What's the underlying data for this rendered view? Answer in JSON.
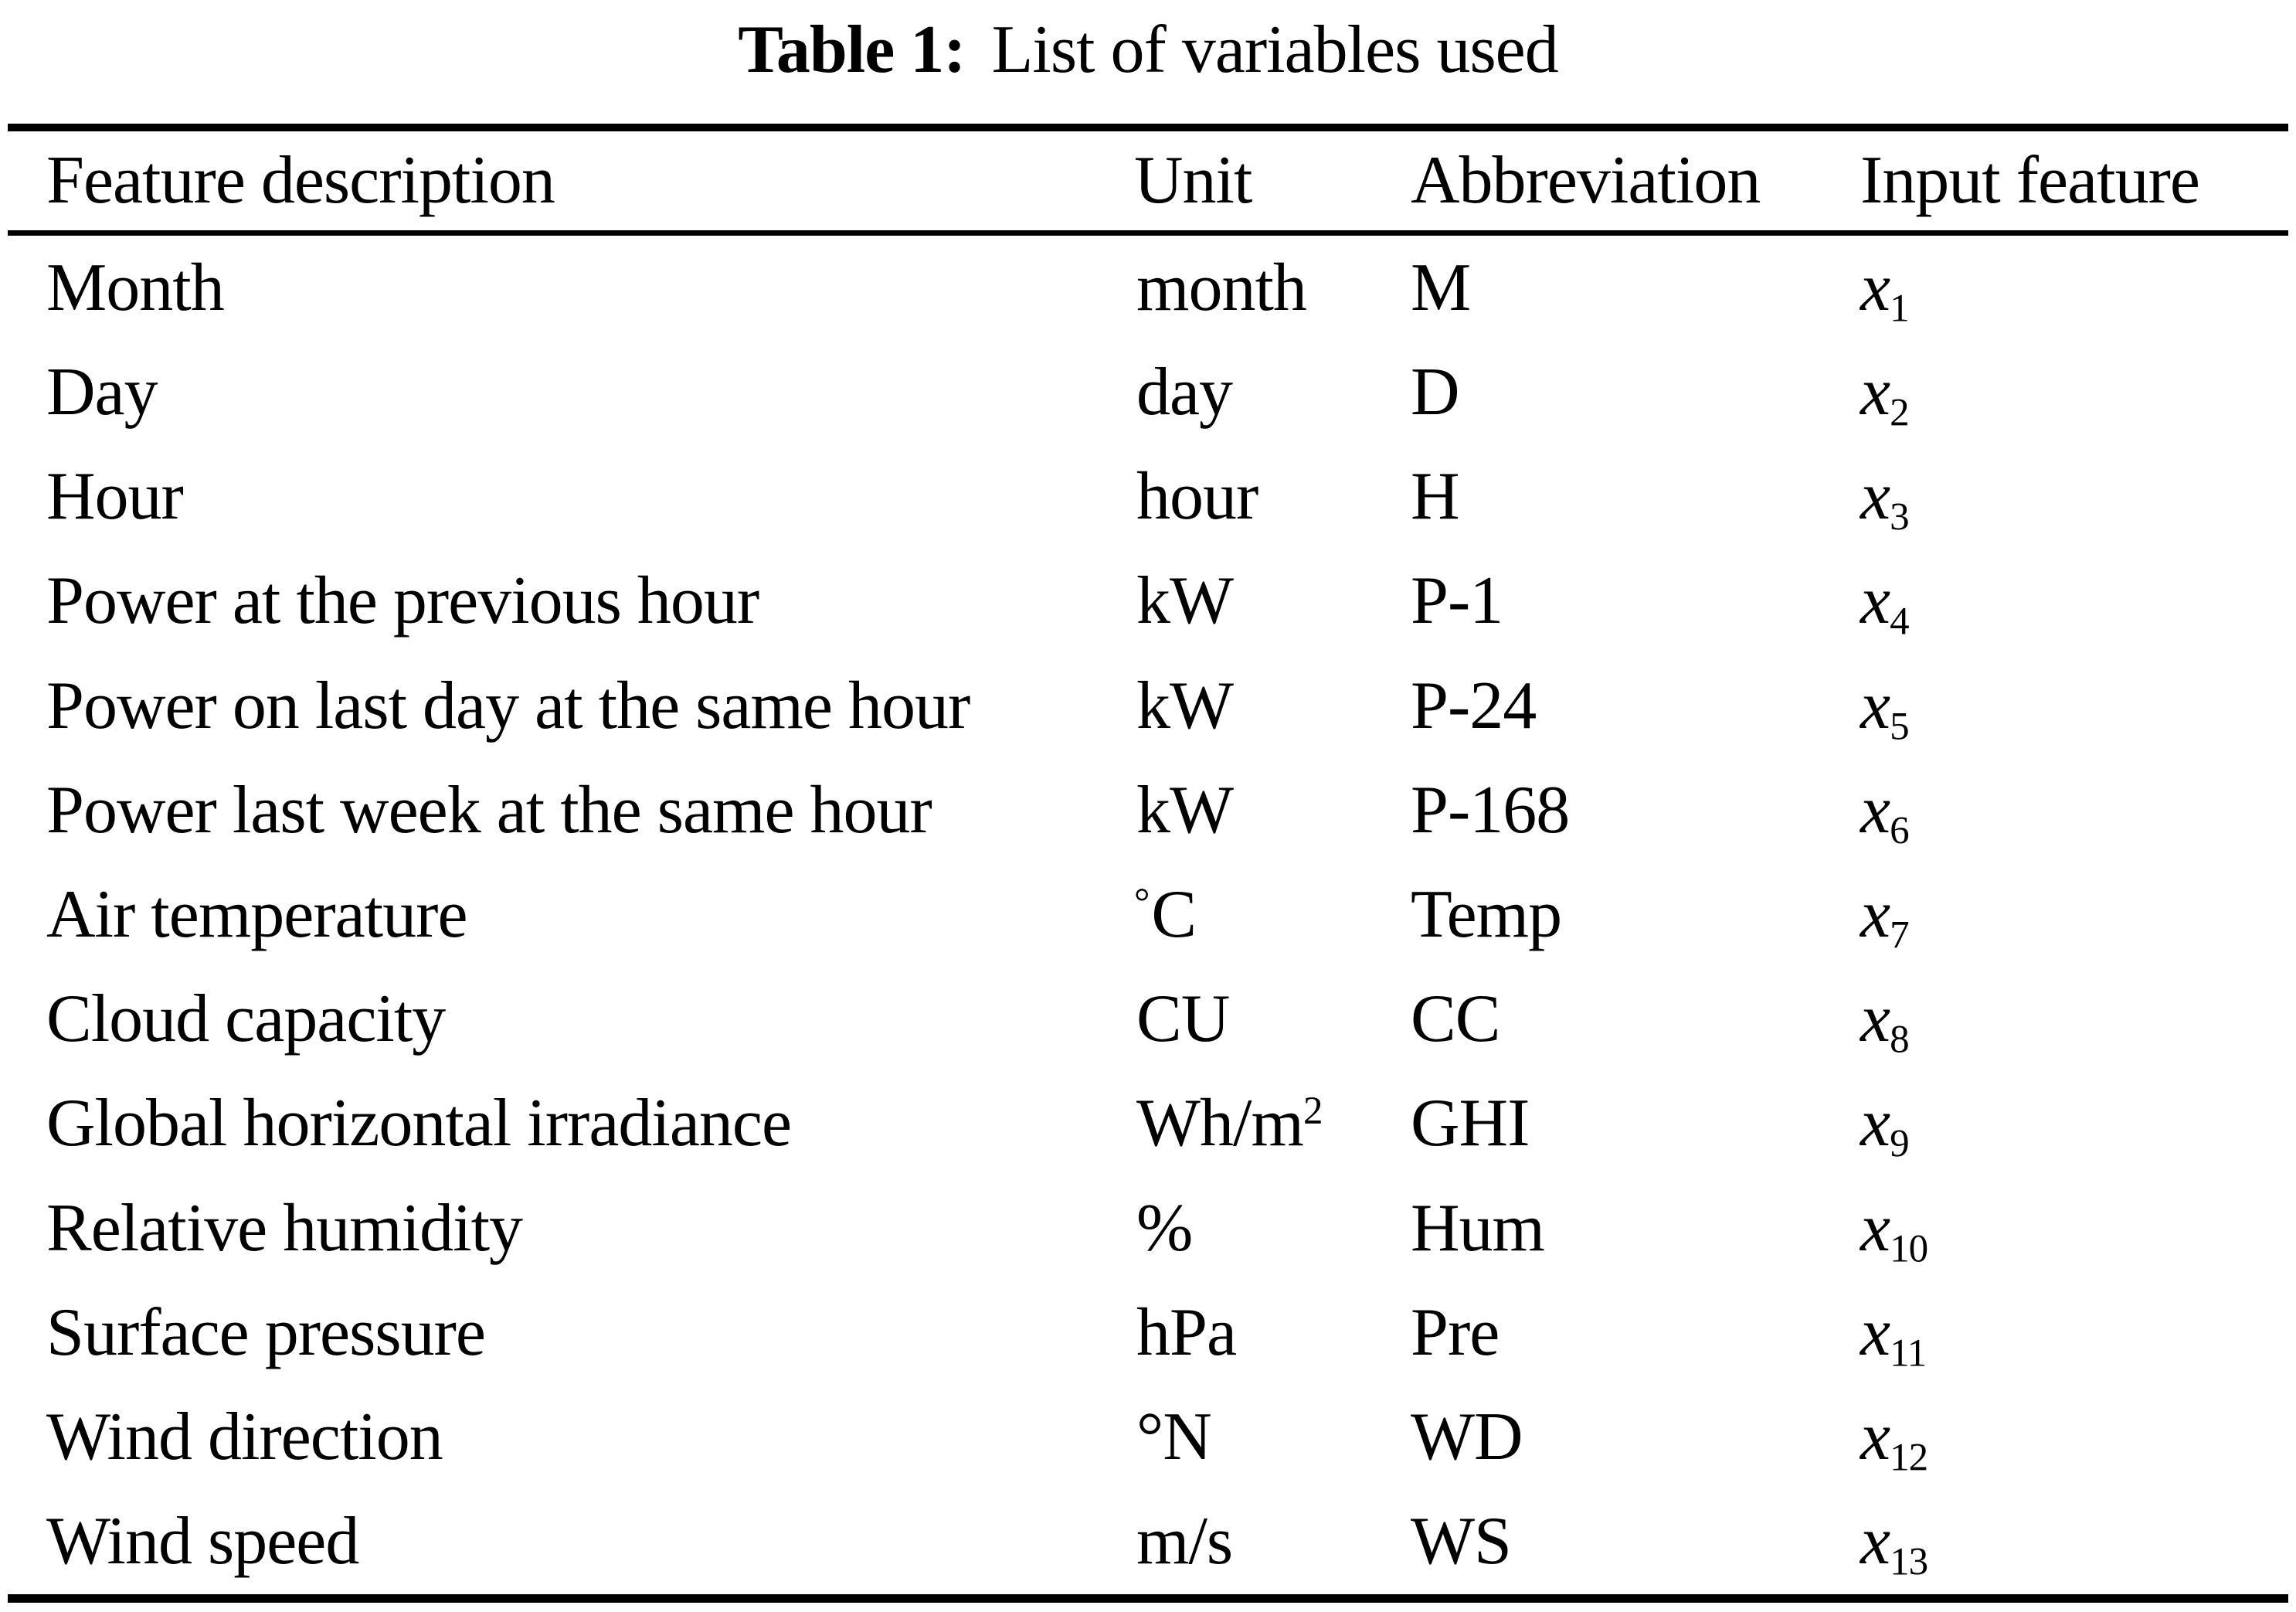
{
  "caption": {
    "label": "Table 1:",
    "title": "List of variables used"
  },
  "table": {
    "headers": [
      "Feature description",
      "Unit",
      "Abbreviation",
      "Input feature"
    ],
    "rows": [
      {
        "feature": "Month",
        "unit": "month",
        "abbr": "M",
        "var_base": "x",
        "var_sub": "1"
      },
      {
        "feature": "Day",
        "unit": "day",
        "abbr": "D",
        "var_base": "x",
        "var_sub": "2"
      },
      {
        "feature": "Hour",
        "unit": "hour",
        "abbr": "H",
        "var_base": "x",
        "var_sub": "3"
      },
      {
        "feature": "Power at the previous hour",
        "unit": "kW",
        "abbr": "P-1",
        "var_base": "x",
        "var_sub": "4"
      },
      {
        "feature": "Power on last day at the same hour",
        "unit": "kW",
        "abbr": "P-24",
        "var_base": "x",
        "var_sub": "5"
      },
      {
        "feature": "Power last week at the same hour",
        "unit": "kW",
        "abbr": "P-168",
        "var_base": "x",
        "var_sub": "6"
      },
      {
        "feature": "Air temperature",
        "unit_presup": "°",
        "unit": "C",
        "abbr": "Temp",
        "var_base": "x",
        "var_sub": "7"
      },
      {
        "feature": "Cloud capacity",
        "unit": "CU",
        "abbr": "CC",
        "var_base": "x",
        "var_sub": "8"
      },
      {
        "feature": "Global horizontal irradiance",
        "unit": "Wh/m",
        "unit_sup": "2",
        "abbr": "GHI",
        "var_base": "x",
        "var_sub": "9"
      },
      {
        "feature": "Relative humidity",
        "unit": "%",
        "abbr": "Hum",
        "var_base": "x",
        "var_sub": "10"
      },
      {
        "feature": "Surface pressure",
        "unit": "hPa",
        "abbr": "Pre",
        "var_base": "x",
        "var_sub": "11"
      },
      {
        "feature": "Wind direction",
        "unit": "°N",
        "abbr": "WD",
        "var_base": "x",
        "var_sub": "12"
      },
      {
        "feature": "Wind speed",
        "unit": "m/s",
        "abbr": "WS",
        "var_base": "x",
        "var_sub": "13"
      }
    ]
  }
}
